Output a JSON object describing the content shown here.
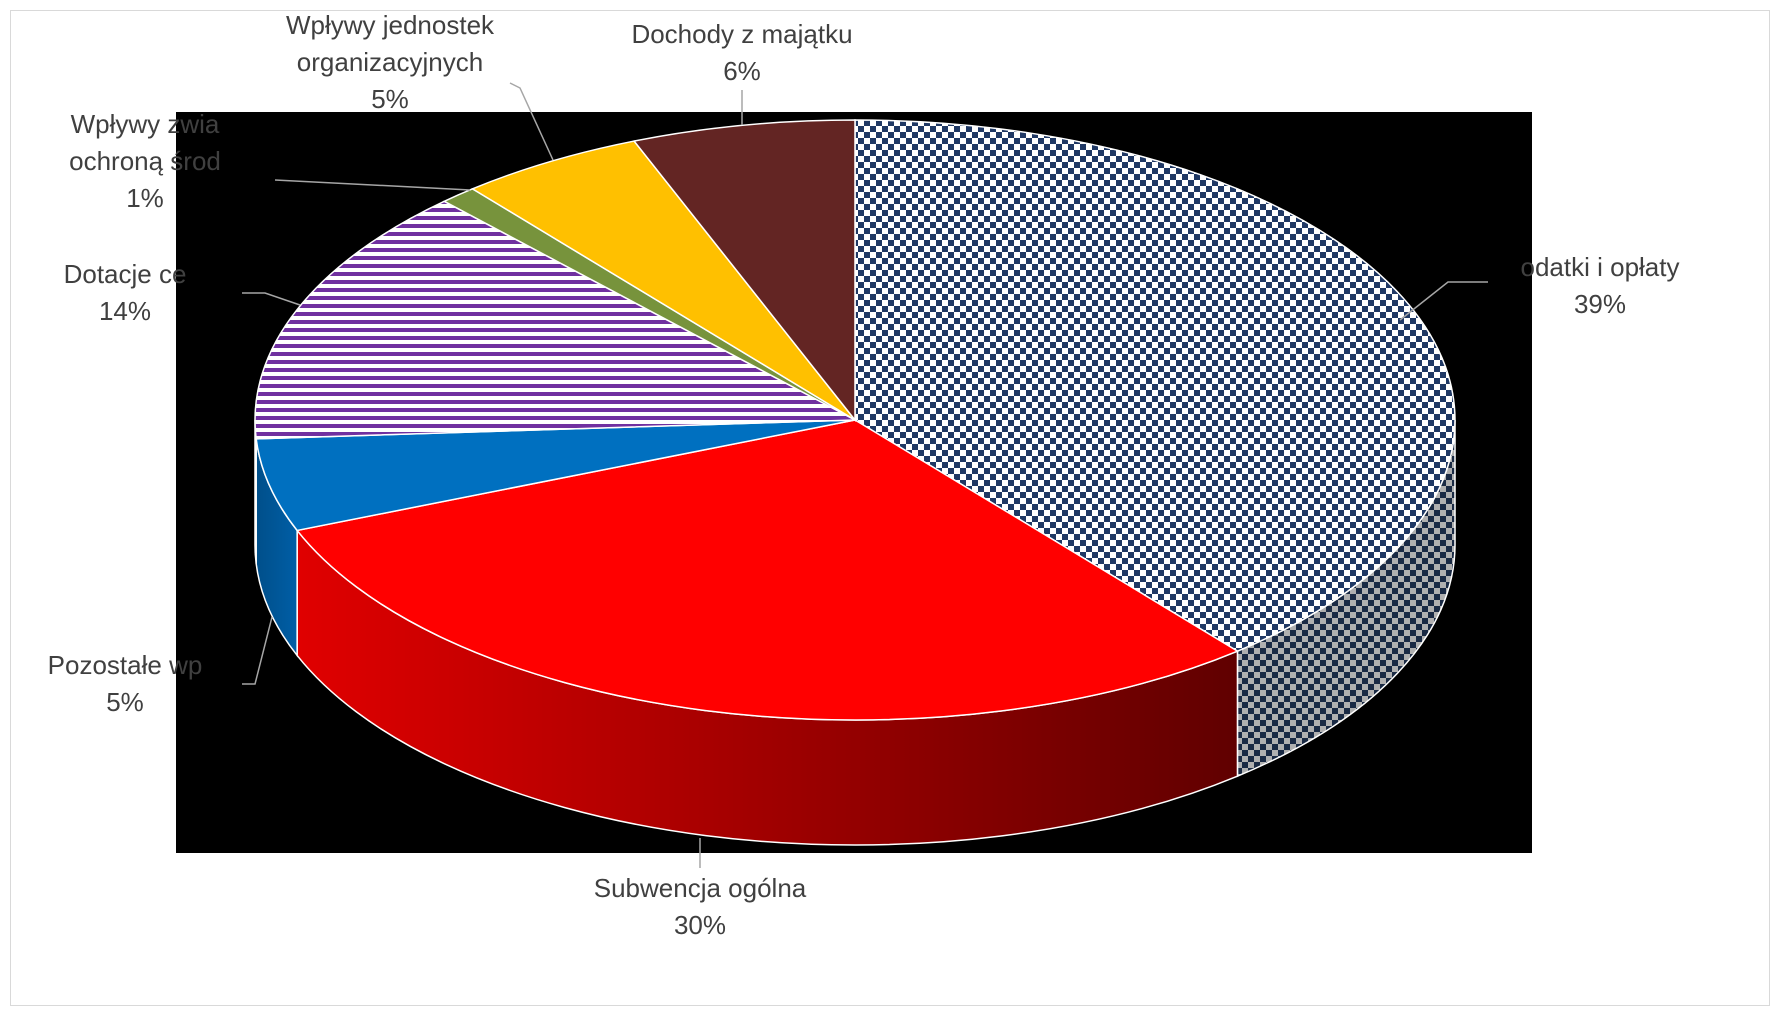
{
  "chart_data": {
    "type": "pie",
    "title": "",
    "slices": [
      {
        "label": "Podatki i opłaty",
        "value": 39,
        "percent_label": "39%",
        "color": "#1f3864",
        "pattern": "checker"
      },
      {
        "label": "Subwencja ogólna",
        "value": 30,
        "percent_label": "30%",
        "color": "#ff0000"
      },
      {
        "label": "Pozostałe wpływy",
        "value": 5,
        "percent_label": "5%",
        "color": "#0070c0"
      },
      {
        "label": "Dotacje celowe",
        "value": 14,
        "percent_label": "14%",
        "color": "#7030a0",
        "pattern": "horizontal-stripes"
      },
      {
        "label": "Wpływy związane z ochroną środowiska",
        "value": 1,
        "percent_label": "1%",
        "color": "#77933c"
      },
      {
        "label": "Wpływy jednostek organizacyjnych",
        "value": 5,
        "percent_label": "5%",
        "color": "#ffc000"
      },
      {
        "label": "Dochody z majątku",
        "value": 6,
        "percent_label": "6%",
        "color": "#632523"
      }
    ],
    "visible_labels": [
      {
        "lines": [
          "odatki i opłaty",
          "39%"
        ]
      },
      {
        "lines": [
          "Subwencja ogólna",
          "30%"
        ]
      },
      {
        "lines": [
          "Pozostałe wp",
          "5%"
        ]
      },
      {
        "lines": [
          "Dotacje ce",
          "14%"
        ]
      },
      {
        "lines": [
          "Wpływy zwia",
          "ochroną środ",
          "1%"
        ]
      },
      {
        "lines": [
          "Wpływy jednostek",
          "organizacyjnych",
          "5%"
        ]
      },
      {
        "lines": [
          "Dochody z majątku",
          "6%"
        ]
      }
    ],
    "style": "3d-pie",
    "plot_background": "#000000"
  }
}
